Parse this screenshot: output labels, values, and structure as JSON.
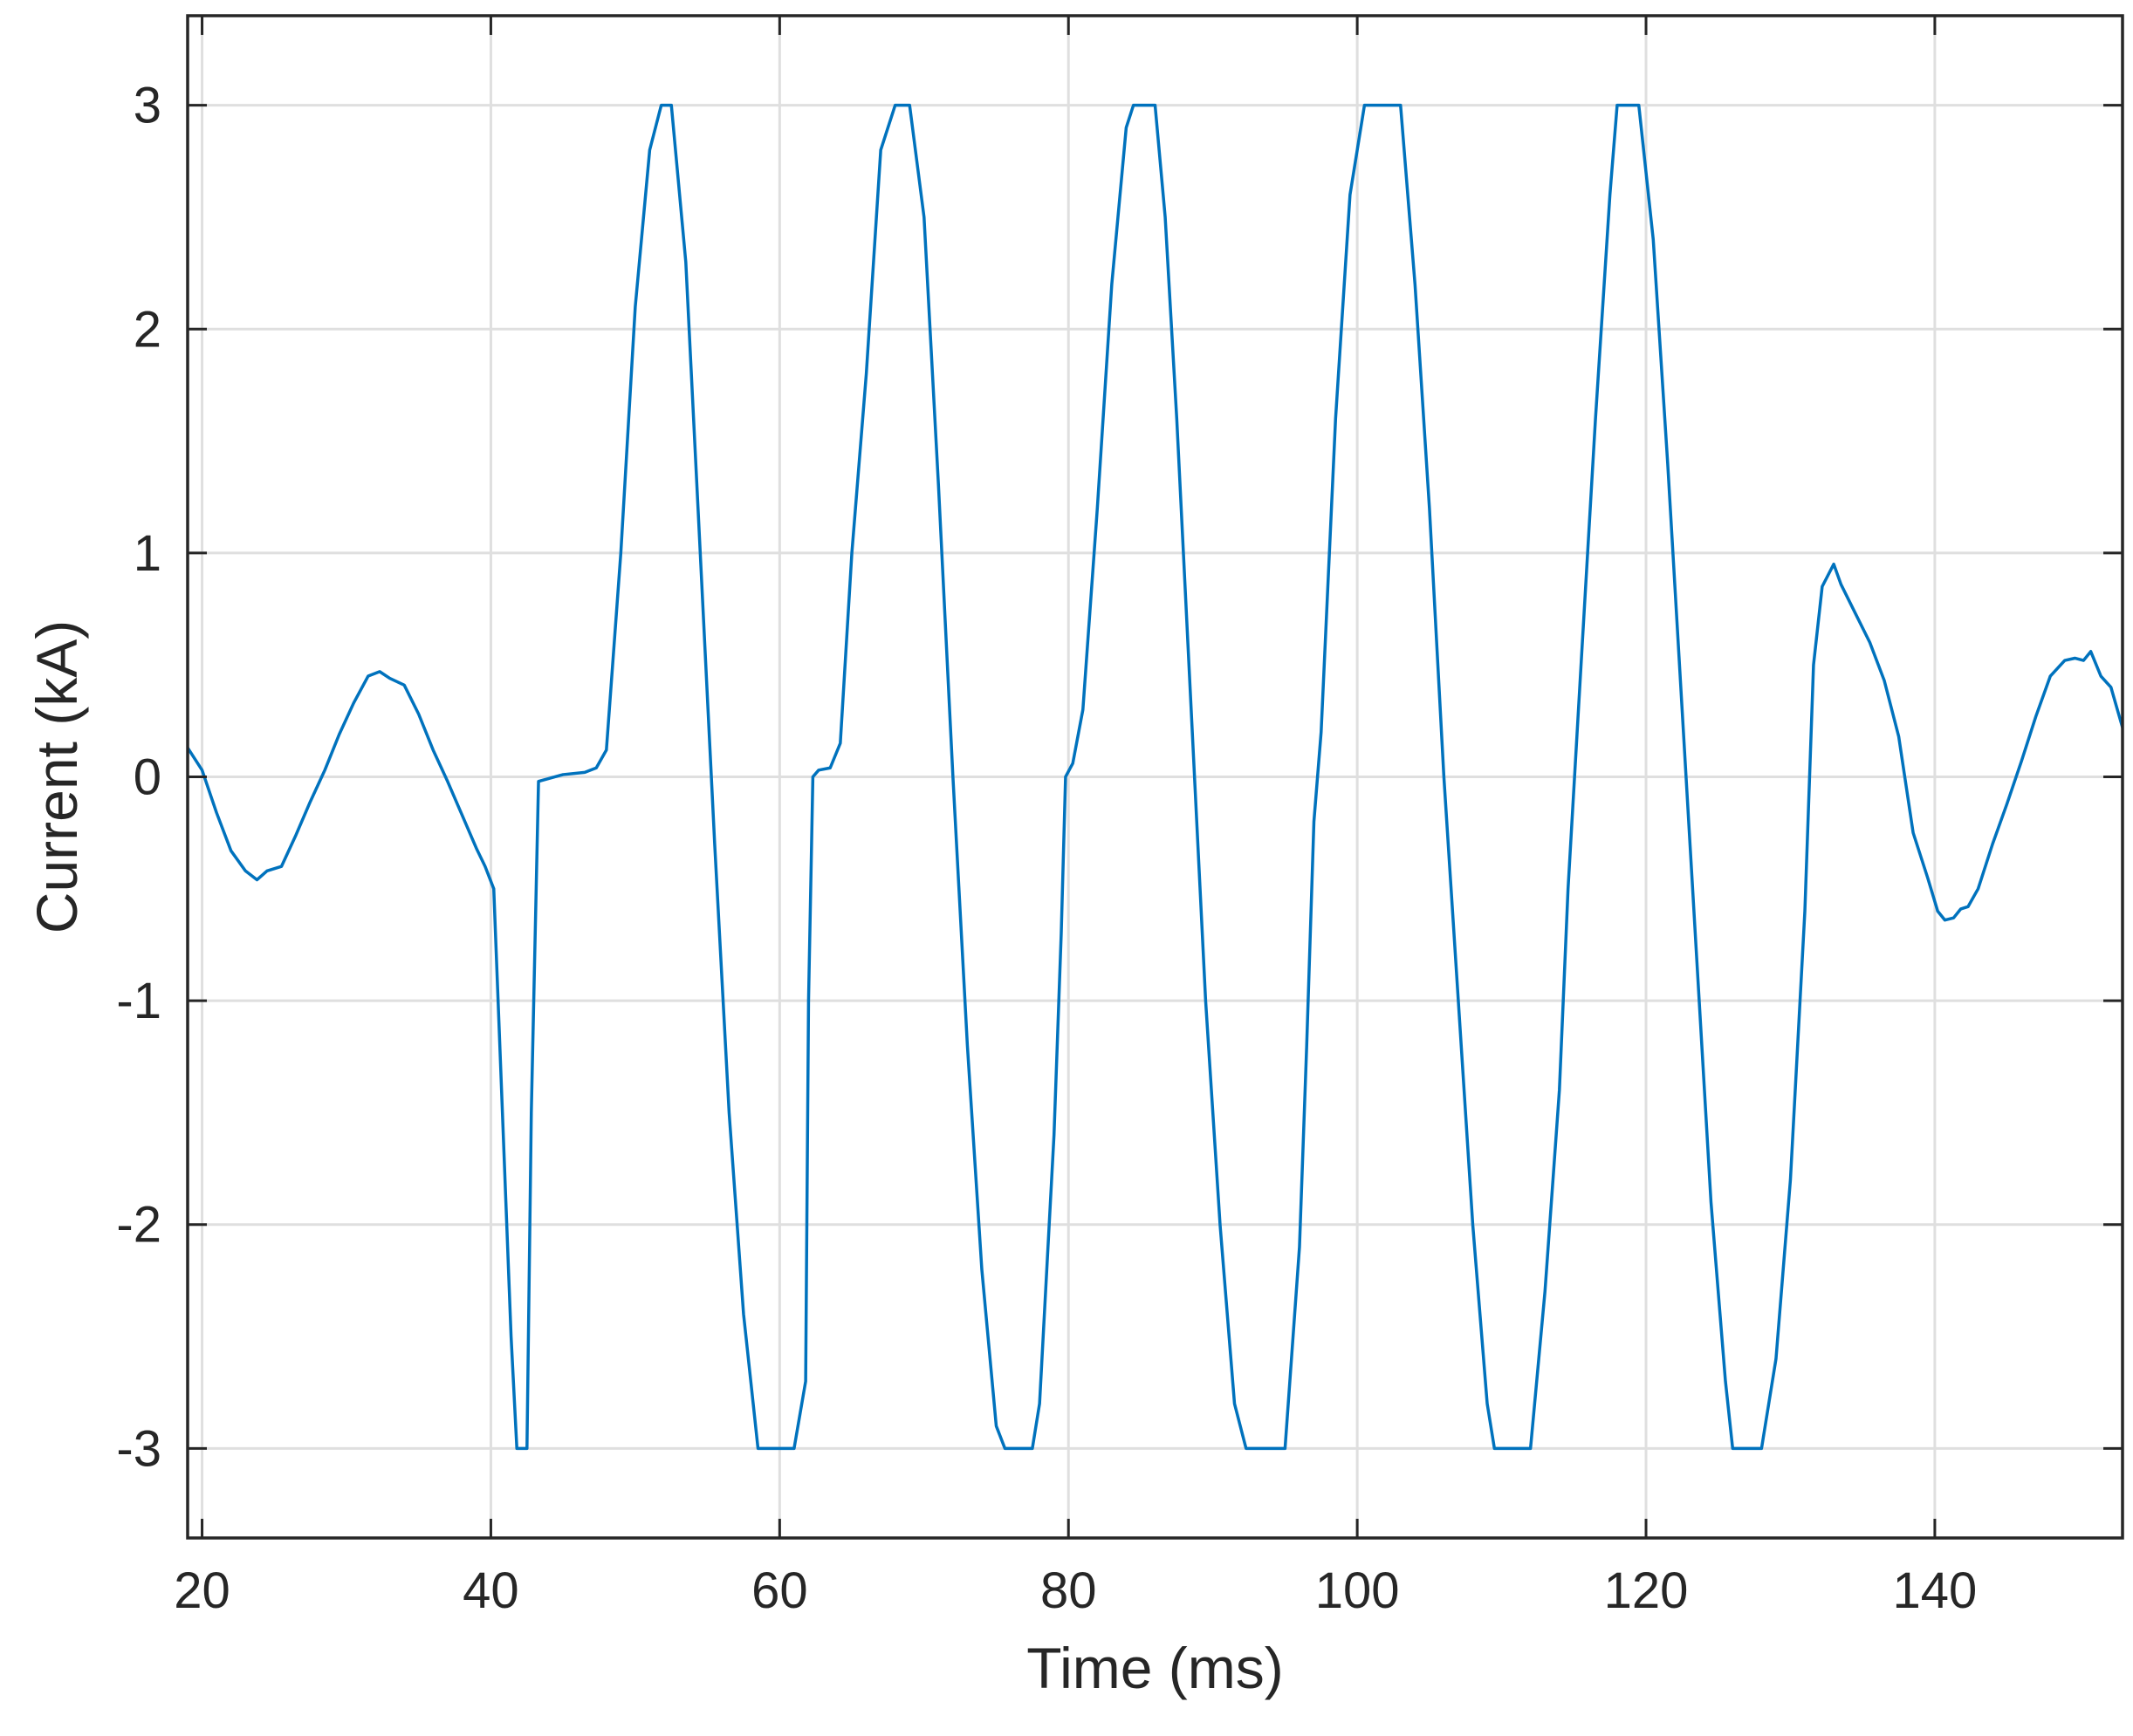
{
  "chart_data": {
    "type": "line",
    "title": "",
    "xlabel": "Time (ms)",
    "ylabel": "Current (kA)",
    "xlim": [
      19,
      153
    ],
    "ylim": [
      -3.4,
      3.4
    ],
    "grid": true,
    "legend": "none",
    "x_ticks": [
      20,
      40,
      60,
      80,
      100,
      120,
      140
    ],
    "y_ticks": [
      -3,
      -2,
      -1,
      0,
      1,
      2,
      3
    ],
    "x_tick_labels": [
      "20",
      "40",
      "60",
      "80",
      "100",
      "120",
      "140"
    ],
    "y_tick_labels": [
      "-3",
      "-2",
      "-1",
      "0",
      "1",
      "2",
      "3"
    ],
    "series": [
      {
        "color": "#0072bd",
        "x": [
          19,
          20,
          21,
          22,
          23,
          23.8,
          24.5,
          25.5,
          26.5,
          27.5,
          28.5,
          29.5,
          30.5,
          31.5,
          32.3,
          33,
          34,
          35,
          36,
          37,
          38,
          39,
          39.6,
          40.2,
          40.8,
          41.4,
          41.8,
          42.5,
          42.8,
          43.3,
          45,
          46.5,
          47.3,
          48,
          49,
          50,
          51,
          51.8,
          52.5,
          53.5,
          54.5,
          55.5,
          56.5,
          57.5,
          58.5,
          59,
          60,
          61,
          61.8,
          62,
          62.3,
          62.7,
          63.5,
          64.2,
          65,
          66,
          67,
          68,
          69,
          70,
          71,
          72,
          73,
          74,
          75,
          75.6,
          76.5,
          77.5,
          78,
          79,
          79.5,
          79.8,
          80.3,
          81,
          82,
          83,
          84,
          84.5,
          86,
          86.7,
          87.5,
          88.5,
          89.5,
          90.5,
          91.5,
          92.3,
          93,
          94,
          95,
          96,
          96.5,
          97,
          97.5,
          98.5,
          99.5,
          100.5,
          101,
          103,
          104,
          105,
          106,
          107,
          108,
          109,
          109.5,
          110,
          111,
          112,
          113,
          114,
          114.6,
          115.5,
          116.5,
          117.5,
          118,
          119.5,
          120.5,
          121.5,
          122.5,
          123.5,
          124.5,
          125.5,
          126,
          127,
          128,
          129,
          130,
          131,
          131.6,
          132.2,
          133,
          133.5,
          134.5,
          135.5,
          136.5,
          137.5,
          138.5,
          139.5,
          140.2,
          140.7,
          141.3,
          141.8,
          142.3,
          143,
          144,
          145,
          146,
          147,
          148,
          149,
          149.7,
          150.3,
          150.8,
          151.5,
          152.2,
          153
        ],
        "y": [
          0.13,
          0.03,
          -0.16,
          -0.33,
          -0.42,
          -0.46,
          -0.42,
          -0.4,
          -0.26,
          -0.11,
          0.03,
          0.19,
          0.33,
          0.45,
          0.47,
          0.44,
          0.41,
          0.28,
          0.12,
          -0.02,
          -0.17,
          -0.32,
          -0.4,
          -0.5,
          -1.5,
          -2.5,
          -3.0,
          -3.0,
          -1.5,
          -0.02,
          0.01,
          0.02,
          0.04,
          0.12,
          1.0,
          2.1,
          2.8,
          3.0,
          3.0,
          2.3,
          1.0,
          -0.3,
          -1.5,
          -2.4,
          -3.0,
          -3.0,
          -3.0,
          -3.0,
          -2.7,
          -1.0,
          0.0,
          0.03,
          0.04,
          0.15,
          1.0,
          1.8,
          2.8,
          3.0,
          3.0,
          2.5,
          1.3,
          0.0,
          -1.2,
          -2.2,
          -2.9,
          -3.0,
          -3.0,
          -3.0,
          -2.8,
          -1.6,
          -0.7,
          0.0,
          0.06,
          0.3,
          1.2,
          2.2,
          2.9,
          3.0,
          3.0,
          2.5,
          1.6,
          0.3,
          -1.0,
          -2.0,
          -2.8,
          -3.0,
          -3.0,
          -3.0,
          -3.0,
          -2.1,
          -1.2,
          -0.2,
          0.2,
          1.6,
          2.6,
          3.0,
          3.0,
          3.0,
          2.2,
          1.2,
          0.0,
          -1.0,
          -2.0,
          -2.8,
          -3.0,
          -3.0,
          -3.0,
          -3.0,
          -2.3,
          -1.4,
          -0.5,
          0.5,
          1.6,
          2.6,
          3.0,
          3.0,
          2.4,
          1.4,
          0.3,
          -0.8,
          -1.9,
          -2.7,
          -3.0,
          -3.0,
          -3.0,
          -2.6,
          -1.8,
          -0.6,
          0.5,
          0.85,
          0.95,
          0.86,
          0.73,
          0.6,
          0.43,
          0.18,
          -0.25,
          -0.45,
          -0.6,
          -0.64,
          -0.63,
          -0.59,
          -0.58,
          -0.5,
          -0.3,
          -0.12,
          0.07,
          0.27,
          0.45,
          0.52,
          0.53,
          0.52,
          0.56,
          0.45,
          0.4,
          0.22
        ]
      }
    ]
  }
}
